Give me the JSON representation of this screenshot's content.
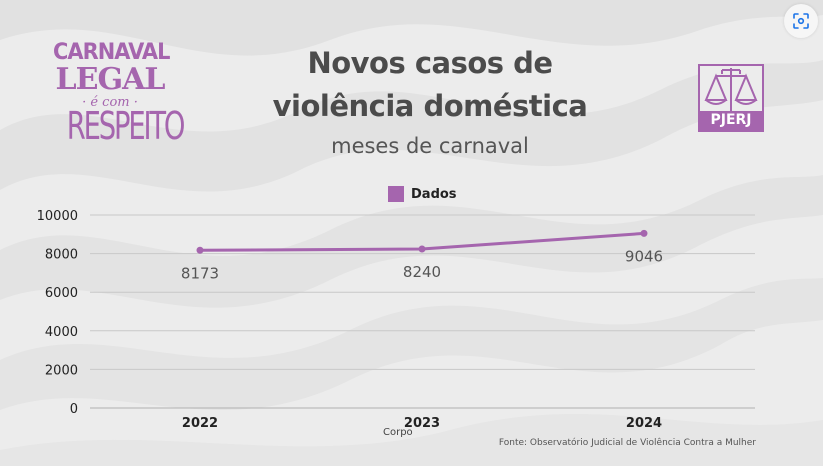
{
  "header": {
    "title_line1": "Novos casos de",
    "title_line2": "violência doméstica",
    "subtitle": "meses de carnaval"
  },
  "logos": {
    "campaign": {
      "line1": "CARNAVAL",
      "line2": "LEGAL",
      "line3": "· é com ·",
      "line4": "RESPEITO"
    },
    "court": {
      "text": "PJERJ",
      "icon": "scales-of-justice-icon"
    }
  },
  "overlay": {
    "lens_button_icon": "visual-search-icon"
  },
  "colors": {
    "accent": "#a565ae",
    "text_dark": "#4b4b4b",
    "gridline": "#c8c8c8",
    "background": "#ececec"
  },
  "source": "Fonte: Observatório Judicial de Violência Contra a Mulher",
  "chart_data": {
    "type": "line",
    "title": "Novos casos de violência doméstica",
    "subtitle": "meses de carnaval",
    "categories": [
      "2022",
      "2023",
      "2024"
    ],
    "series": [
      {
        "name": "Dados",
        "values": [
          8173,
          8240,
          9046
        ],
        "color": "#a565ae"
      }
    ],
    "data_labels": [
      "8173",
      "8240",
      "9046"
    ],
    "xlabel": "Corpo",
    "ylabel": "",
    "ylim": [
      0,
      10000
    ],
    "yticks": [
      0,
      2000,
      4000,
      6000,
      8000,
      10000
    ],
    "grid": true,
    "legend": {
      "position": "top-center",
      "entries": [
        "Dados"
      ]
    }
  }
}
